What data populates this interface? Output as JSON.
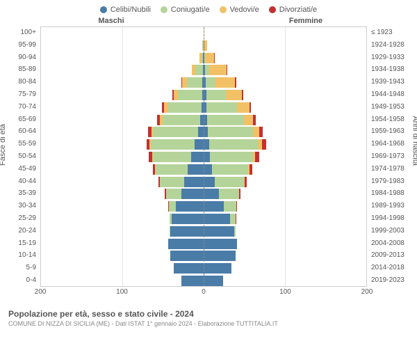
{
  "legend": {
    "items": [
      {
        "label": "Celibi/Nubili",
        "color": "#4a7ca8"
      },
      {
        "label": "Coniugati/e",
        "color": "#b5d49a"
      },
      {
        "label": "Vedovi/e",
        "color": "#f2c166"
      },
      {
        "label": "Divorziati/e",
        "color": "#c2312f"
      }
    ]
  },
  "headers": {
    "male": "Maschi",
    "female": "Femmine"
  },
  "axes": {
    "left_title": "Fasce di età",
    "right_title": "Anni di nascita",
    "xmax": 200,
    "xticks": [
      -200,
      -100,
      0,
      100,
      200
    ],
    "xtick_labels": [
      "200",
      "100",
      "0",
      "100",
      "200"
    ]
  },
  "colors": {
    "single": "#4a7ca8",
    "married": "#b5d49a",
    "widowed": "#f2c166",
    "divorced": "#c2312f",
    "grid": "#e5e5e5",
    "center_dash": "#888"
  },
  "rows": [
    {
      "age": "100+",
      "year": "≤ 1923",
      "m": {
        "s": 0,
        "m": 0,
        "w": 0,
        "d": 0
      },
      "f": {
        "s": 0,
        "m": 0,
        "w": 2,
        "d": 0
      }
    },
    {
      "age": "95-99",
      "year": "1924-1928",
      "m": {
        "s": 0,
        "m": 1,
        "w": 2,
        "d": 0
      },
      "f": {
        "s": 1,
        "m": 0,
        "w": 8,
        "d": 0
      }
    },
    {
      "age": "90-94",
      "year": "1929-1933",
      "m": {
        "s": 1,
        "m": 4,
        "w": 5,
        "d": 0
      },
      "f": {
        "s": 2,
        "m": 2,
        "w": 22,
        "d": 1
      }
    },
    {
      "age": "85-89",
      "year": "1934-1938",
      "m": {
        "s": 2,
        "m": 18,
        "w": 9,
        "d": 0
      },
      "f": {
        "s": 4,
        "m": 10,
        "w": 42,
        "d": 2
      }
    },
    {
      "age": "80-84",
      "year": "1939-1943",
      "m": {
        "s": 3,
        "m": 38,
        "w": 12,
        "d": 2
      },
      "f": {
        "s": 5,
        "m": 24,
        "w": 48,
        "d": 3
      }
    },
    {
      "age": "75-79",
      "year": "1944-1948",
      "m": {
        "s": 4,
        "m": 60,
        "w": 10,
        "d": 3
      },
      "f": {
        "s": 6,
        "m": 48,
        "w": 40,
        "d": 4
      }
    },
    {
      "age": "70-74",
      "year": "1949-1953",
      "m": {
        "s": 6,
        "m": 82,
        "w": 9,
        "d": 5
      },
      "f": {
        "s": 7,
        "m": 75,
        "w": 30,
        "d": 5
      }
    },
    {
      "age": "65-69",
      "year": "1954-1958",
      "m": {
        "s": 9,
        "m": 92,
        "w": 7,
        "d": 6
      },
      "f": {
        "s": 8,
        "m": 92,
        "w": 22,
        "d": 6
      }
    },
    {
      "age": "60-64",
      "year": "1959-1963",
      "m": {
        "s": 14,
        "m": 110,
        "w": 5,
        "d": 7
      },
      "f": {
        "s": 10,
        "m": 112,
        "w": 15,
        "d": 8
      }
    },
    {
      "age": "55-59",
      "year": "1964-1968",
      "m": {
        "s": 22,
        "m": 108,
        "w": 3,
        "d": 8
      },
      "f": {
        "s": 14,
        "m": 120,
        "w": 10,
        "d": 10
      }
    },
    {
      "age": "50-54",
      "year": "1969-1973",
      "m": {
        "s": 30,
        "m": 95,
        "w": 2,
        "d": 8
      },
      "f": {
        "s": 16,
        "m": 105,
        "w": 6,
        "d": 9
      }
    },
    {
      "age": "45-49",
      "year": "1974-1978",
      "m": {
        "s": 40,
        "m": 78,
        "w": 1,
        "d": 6
      },
      "f": {
        "s": 20,
        "m": 90,
        "w": 3,
        "d": 7
      }
    },
    {
      "age": "40-44",
      "year": "1979-1983",
      "m": {
        "s": 48,
        "m": 60,
        "w": 0,
        "d": 4
      },
      "f": {
        "s": 28,
        "m": 72,
        "w": 1,
        "d": 5
      }
    },
    {
      "age": "35-39",
      "year": "1984-1988",
      "m": {
        "s": 55,
        "m": 38,
        "w": 0,
        "d": 2
      },
      "f": {
        "s": 38,
        "m": 50,
        "w": 0,
        "d": 3
      }
    },
    {
      "age": "30-34",
      "year": "1989-1993",
      "m": {
        "s": 68,
        "m": 18,
        "w": 0,
        "d": 1
      },
      "f": {
        "s": 50,
        "m": 30,
        "w": 0,
        "d": 2
      }
    },
    {
      "age": "25-29",
      "year": "1994-1998",
      "m": {
        "s": 78,
        "m": 6,
        "w": 0,
        "d": 0
      },
      "f": {
        "s": 65,
        "m": 14,
        "w": 0,
        "d": 1
      }
    },
    {
      "age": "20-24",
      "year": "1999-2003",
      "m": {
        "s": 82,
        "m": 1,
        "w": 0,
        "d": 0
      },
      "f": {
        "s": 75,
        "m": 3,
        "w": 0,
        "d": 0
      }
    },
    {
      "age": "15-19",
      "year": "2004-2008",
      "m": {
        "s": 88,
        "m": 0,
        "w": 0,
        "d": 0
      },
      "f": {
        "s": 82,
        "m": 0,
        "w": 0,
        "d": 0
      }
    },
    {
      "age": "10-14",
      "year": "2009-2013",
      "m": {
        "s": 82,
        "m": 0,
        "w": 0,
        "d": 0
      },
      "f": {
        "s": 78,
        "m": 0,
        "w": 0,
        "d": 0
      }
    },
    {
      "age": "5-9",
      "year": "2014-2018",
      "m": {
        "s": 74,
        "m": 0,
        "w": 0,
        "d": 0
      },
      "f": {
        "s": 68,
        "m": 0,
        "w": 0,
        "d": 0
      }
    },
    {
      "age": "0-4",
      "year": "2019-2023",
      "m": {
        "s": 55,
        "m": 0,
        "w": 0,
        "d": 0
      },
      "f": {
        "s": 48,
        "m": 0,
        "w": 0,
        "d": 0
      }
    }
  ],
  "footer": {
    "title": "Popolazione per età, sesso e stato civile - 2024",
    "subtitle": "COMUNE DI NIZZA DI SICILIA (ME) - Dati ISTAT 1° gennaio 2024 - Elaborazione TUTTITALIA.IT"
  }
}
